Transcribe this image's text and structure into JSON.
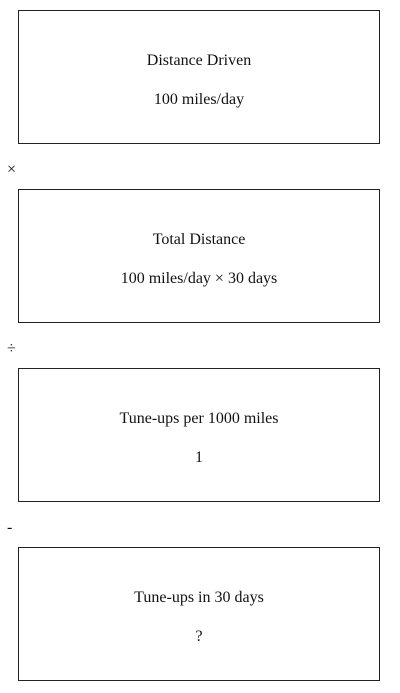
{
  "steps": [
    {
      "title": "Distance Driven",
      "value": "100 miles/day"
    },
    {
      "title": "Total Distance",
      "value": "100 miles/day × 30 days"
    },
    {
      "title": "Tune-ups per 1000 miles",
      "value": "1"
    },
    {
      "title": "Tune-ups in 30 days",
      "value": "?"
    }
  ],
  "operators": [
    "×",
    "÷",
    "-"
  ]
}
